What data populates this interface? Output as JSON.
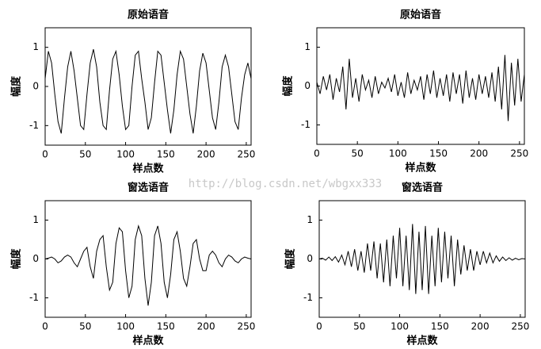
{
  "watermark": "http://blog.csdn.net/wbgxx333",
  "chart_data": [
    {
      "type": "line",
      "title": "原始语音",
      "xlabel": "样点数",
      "ylabel": "幅度",
      "color": "#000000",
      "xlim": [
        0,
        256
      ],
      "ylim": [
        -1.5,
        1.5
      ],
      "xticks": [
        0,
        50,
        100,
        150,
        200,
        250
      ],
      "yticks": [
        -1,
        0,
        1
      ],
      "x": [
        0,
        4,
        8,
        12,
        16,
        20,
        24,
        28,
        32,
        36,
        40,
        44,
        48,
        52,
        56,
        60,
        64,
        68,
        72,
        76,
        80,
        84,
        88,
        92,
        96,
        100,
        104,
        108,
        112,
        116,
        120,
        124,
        128,
        132,
        136,
        140,
        144,
        148,
        152,
        156,
        160,
        164,
        168,
        172,
        176,
        180,
        184,
        188,
        192,
        196,
        200,
        204,
        208,
        212,
        216,
        220,
        224,
        228,
        232,
        236,
        240,
        244,
        248,
        252,
        256
      ],
      "values": [
        0.2,
        0.9,
        0.6,
        -0.2,
        -0.9,
        -1.2,
        -0.3,
        0.5,
        0.9,
        0.4,
        -0.3,
        -1.0,
        -1.1,
        -0.2,
        0.6,
        0.95,
        0.5,
        -0.4,
        -1.0,
        -1.1,
        -0.1,
        0.7,
        0.9,
        0.3,
        -0.5,
        -1.1,
        -1.0,
        0.0,
        0.8,
        0.9,
        0.2,
        -0.4,
        -1.1,
        -0.8,
        0.1,
        0.9,
        0.8,
        0.1,
        -0.6,
        -1.2,
        -0.6,
        0.3,
        0.9,
        0.7,
        0.0,
        -0.7,
        -1.2,
        -0.5,
        0.4,
        0.85,
        0.6,
        -0.1,
        -0.8,
        -1.1,
        -0.4,
        0.5,
        0.8,
        0.5,
        -0.2,
        -0.9,
        -1.1,
        -0.3,
        0.3,
        0.6,
        0.2
      ]
    },
    {
      "type": "line",
      "title": "原始语音",
      "xlabel": "样点数",
      "ylabel": "幅度",
      "color": "#000000",
      "xlim": [
        0,
        256
      ],
      "ylim": [
        -1.5,
        1.5
      ],
      "xticks": [
        0,
        50,
        100,
        150,
        200,
        250
      ],
      "yticks": [
        -1,
        0,
        1
      ],
      "x": [
        0,
        4,
        8,
        12,
        16,
        20,
        24,
        28,
        32,
        36,
        40,
        44,
        48,
        52,
        56,
        60,
        64,
        68,
        72,
        76,
        80,
        84,
        88,
        92,
        96,
        100,
        104,
        108,
        112,
        116,
        120,
        124,
        128,
        132,
        136,
        140,
        144,
        148,
        152,
        156,
        160,
        164,
        168,
        172,
        176,
        180,
        184,
        188,
        192,
        196,
        200,
        204,
        208,
        212,
        216,
        220,
        224,
        228,
        232,
        236,
        240,
        244,
        248,
        252,
        256
      ],
      "values": [
        0.1,
        -0.2,
        0.25,
        -0.1,
        0.3,
        -0.35,
        0.2,
        -0.15,
        0.5,
        -0.6,
        0.7,
        -0.3,
        0.2,
        -0.4,
        0.3,
        -0.1,
        0.15,
        -0.3,
        0.25,
        -0.2,
        0.1,
        -0.05,
        0.2,
        -0.15,
        0.3,
        -0.25,
        0.1,
        -0.3,
        0.35,
        -0.2,
        0.15,
        -0.1,
        0.25,
        -0.35,
        0.3,
        -0.2,
        0.4,
        -0.3,
        0.2,
        -0.25,
        0.3,
        -0.4,
        0.35,
        -0.2,
        0.3,
        -0.45,
        0.4,
        -0.3,
        0.2,
        -0.35,
        0.3,
        -0.2,
        0.25,
        -0.3,
        0.35,
        -0.4,
        0.5,
        -0.6,
        0.8,
        -0.9,
        0.6,
        -0.5,
        0.7,
        -0.4,
        0.3
      ]
    },
    {
      "type": "line",
      "title": "窗选语音",
      "xlabel": "样点数",
      "ylabel": "幅度",
      "color": "#000000",
      "xlim": [
        0,
        256
      ],
      "ylim": [
        -1.5,
        1.5
      ],
      "xticks": [
        0,
        50,
        100,
        150,
        200,
        250
      ],
      "yticks": [
        -1,
        0,
        1
      ],
      "x": [
        0,
        4,
        8,
        12,
        16,
        20,
        24,
        28,
        32,
        36,
        40,
        44,
        48,
        52,
        56,
        60,
        64,
        68,
        72,
        76,
        80,
        84,
        88,
        92,
        96,
        100,
        104,
        108,
        112,
        116,
        120,
        124,
        128,
        132,
        136,
        140,
        144,
        148,
        152,
        156,
        160,
        164,
        168,
        172,
        176,
        180,
        184,
        188,
        192,
        196,
        200,
        204,
        208,
        212,
        216,
        220,
        224,
        228,
        232,
        236,
        240,
        244,
        248,
        252,
        256
      ],
      "values": [
        0,
        0.02,
        0.05,
        0.0,
        -0.1,
        -0.05,
        0.05,
        0.1,
        0.05,
        -0.1,
        -0.2,
        0.0,
        0.2,
        0.3,
        -0.2,
        -0.5,
        0.2,
        0.5,
        0.6,
        -0.2,
        -0.8,
        -0.6,
        0.4,
        0.8,
        0.7,
        -0.3,
        -1.0,
        -0.7,
        0.5,
        0.85,
        0.6,
        -0.5,
        -1.2,
        -0.6,
        0.6,
        0.85,
        0.4,
        -0.6,
        -1.0,
        -0.4,
        0.5,
        0.7,
        0.2,
        -0.5,
        -0.7,
        -0.2,
        0.4,
        0.5,
        0.0,
        -0.3,
        -0.3,
        0.1,
        0.2,
        0.1,
        -0.1,
        -0.2,
        0.0,
        0.1,
        0.05,
        -0.05,
        -0.1,
        0.0,
        0.05,
        0.02,
        0
      ]
    },
    {
      "type": "line",
      "title": "窗选语音",
      "xlabel": "样点数",
      "ylabel": "幅度",
      "color": "#000000",
      "xlim": [
        0,
        256
      ],
      "ylim": [
        -1.5,
        1.5
      ],
      "xticks": [
        0,
        50,
        100,
        150,
        200,
        250
      ],
      "yticks": [
        -1,
        0,
        1
      ],
      "x": [
        0,
        4,
        8,
        12,
        16,
        20,
        24,
        28,
        32,
        36,
        40,
        44,
        48,
        52,
        56,
        60,
        64,
        68,
        72,
        76,
        80,
        84,
        88,
        92,
        96,
        100,
        104,
        108,
        112,
        116,
        120,
        124,
        128,
        132,
        136,
        140,
        144,
        148,
        152,
        156,
        160,
        164,
        168,
        172,
        176,
        180,
        184,
        188,
        192,
        196,
        200,
        204,
        208,
        212,
        216,
        220,
        224,
        228,
        232,
        236,
        240,
        244,
        248,
        252,
        256
      ],
      "values": [
        0,
        0.02,
        -0.03,
        0.05,
        -0.04,
        0.06,
        -0.08,
        0.1,
        -0.15,
        0.2,
        -0.2,
        0.25,
        -0.3,
        0.2,
        -0.35,
        0.4,
        -0.3,
        0.45,
        -0.5,
        0.4,
        -0.6,
        0.5,
        -0.7,
        0.6,
        -0.5,
        0.8,
        -0.7,
        0.6,
        -0.8,
        0.9,
        -0.9,
        0.7,
        -0.8,
        0.85,
        -0.9,
        0.6,
        -0.7,
        0.8,
        -0.6,
        0.7,
        -0.5,
        0.6,
        -0.7,
        0.5,
        -0.4,
        0.35,
        -0.3,
        0.25,
        -0.3,
        0.2,
        -0.15,
        0.2,
        -0.1,
        0.15,
        -0.1,
        0.08,
        -0.06,
        0.05,
        -0.04,
        0.03,
        -0.03,
        0.02,
        -0.02,
        0.01,
        0
      ]
    }
  ]
}
